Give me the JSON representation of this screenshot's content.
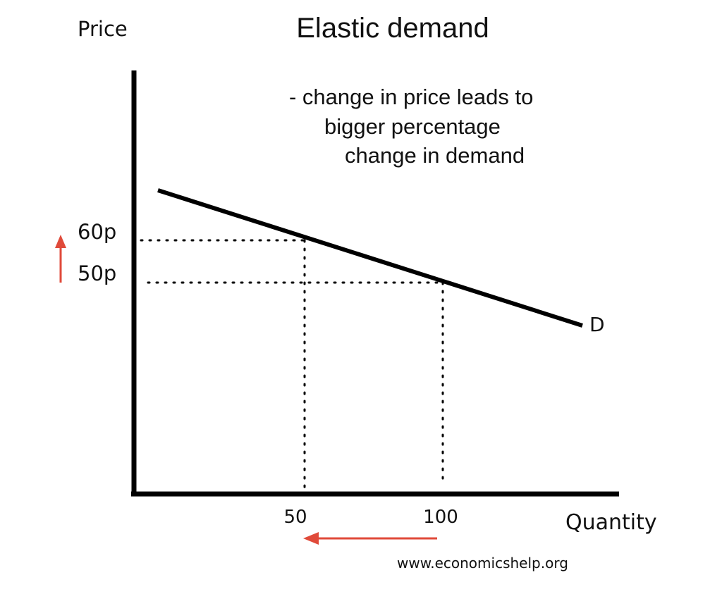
{
  "title": "Elastic demand",
  "y_axis_label": "Price",
  "x_axis_label": "Quantity",
  "annotation": {
    "lines": [
      "- change in price leads to",
      "bigger percentage",
      "change in demand"
    ]
  },
  "curve_label": "D",
  "price_ticks": [
    {
      "label": "60p",
      "value": 60
    },
    {
      "label": "50p",
      "value": 50
    }
  ],
  "quantity_ticks": [
    {
      "label": "50",
      "value": 50
    },
    {
      "label": "100",
      "value": 100
    }
  ],
  "price_change_arrow": {
    "direction": "up",
    "color": "#e04a3a",
    "icon": "arrow-up-icon"
  },
  "quantity_change_arrow": {
    "direction": "left",
    "color": "#e04a3a",
    "icon": "arrow-left-icon"
  },
  "credit": "www.economicshelp.org",
  "colors": {
    "axis": "#000000",
    "curve": "#000000",
    "guides": "#000000",
    "arrows": "#e04a3a"
  }
}
